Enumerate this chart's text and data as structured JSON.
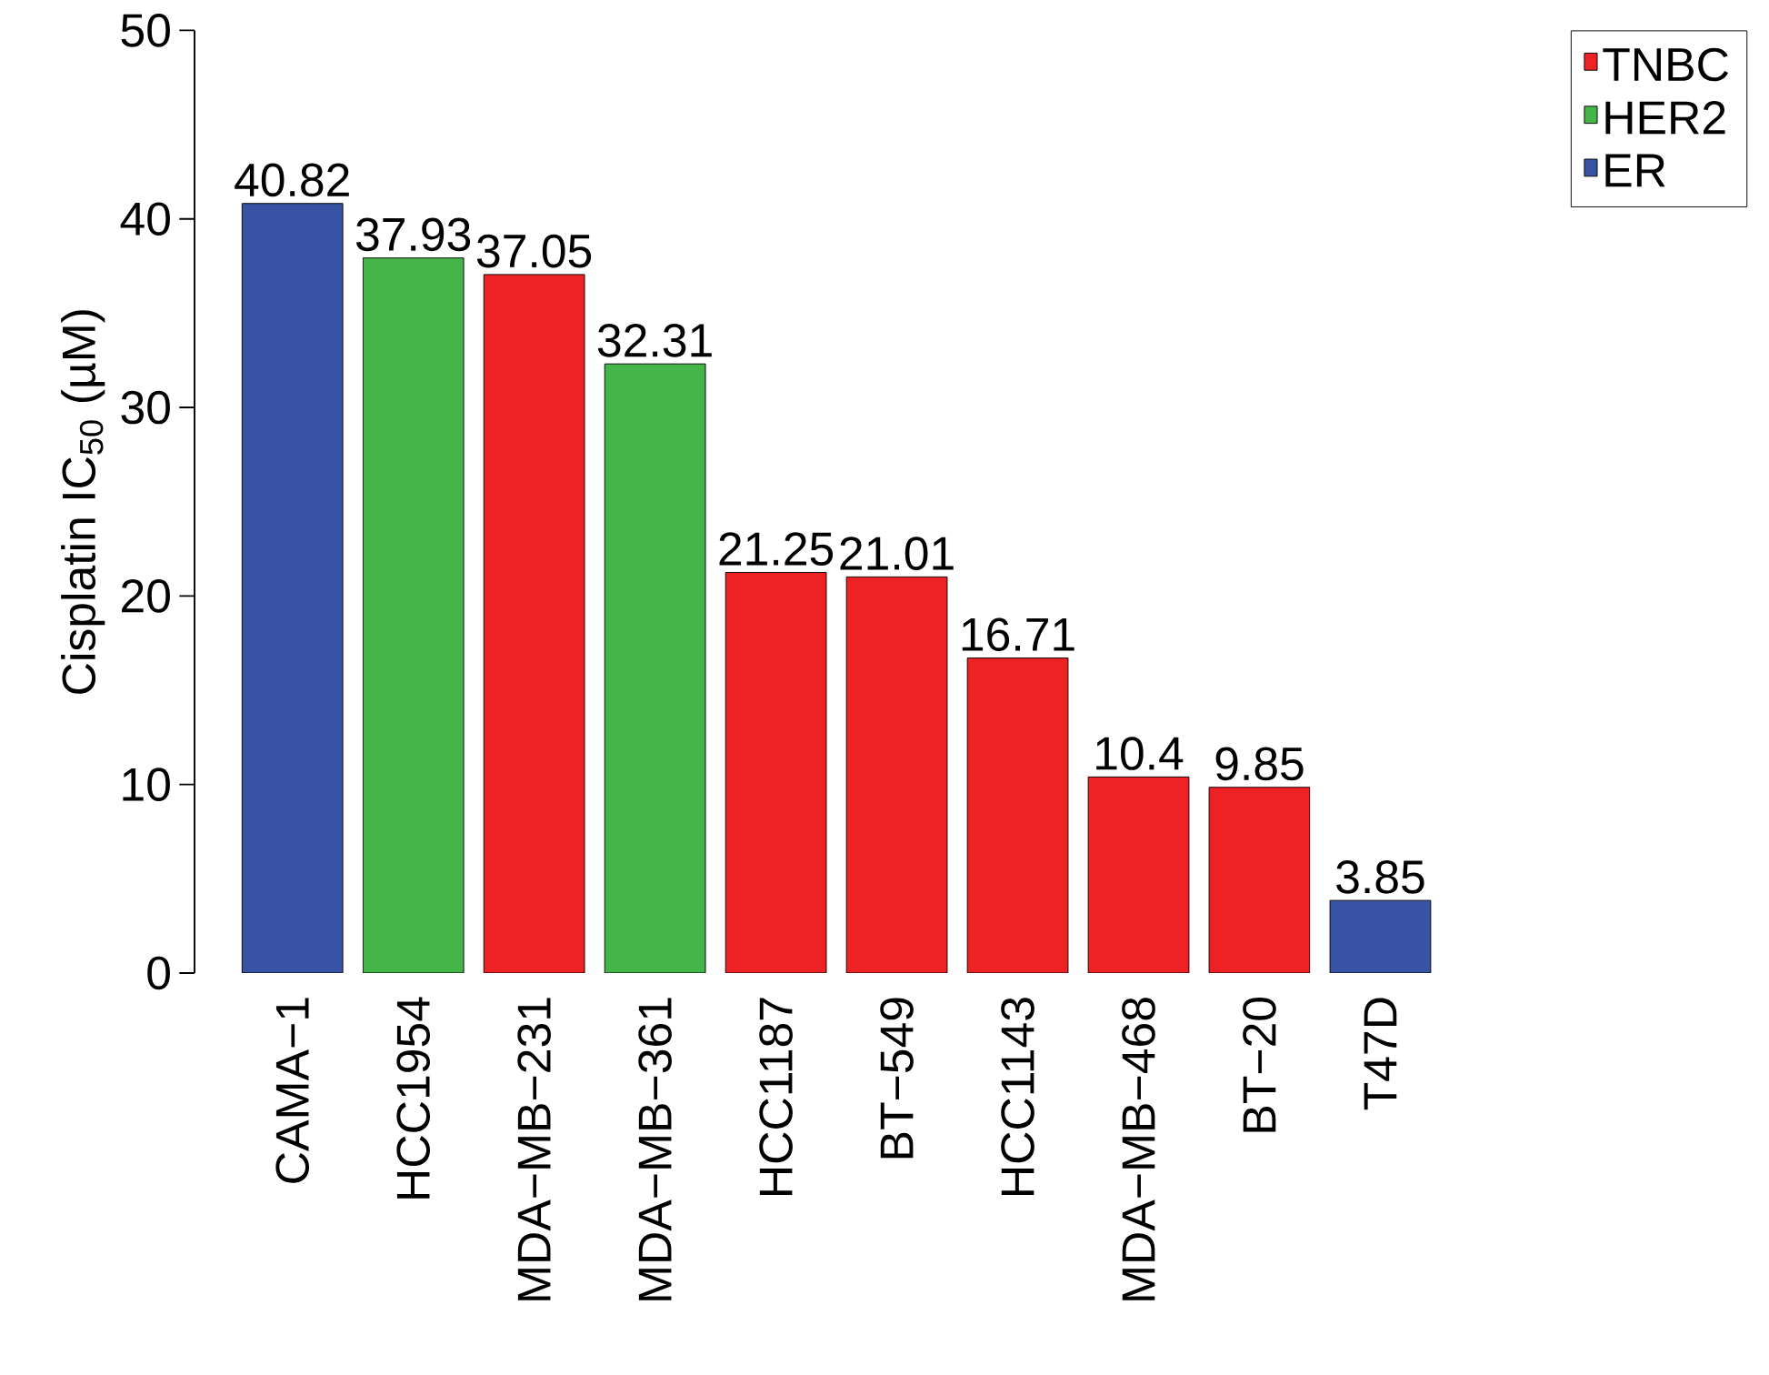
{
  "chart_data": {
    "type": "bar",
    "ylabel": "Cisplatin IC$_{50}$ (µM)",
    "categories": [
      "CAMA−1",
      "HCC1954",
      "MDA−MB−231",
      "MDA−MB−361",
      "HCC1187",
      "BT−549",
      "HCC1143",
      "MDA−MB−468",
      "BT−20",
      "T47D"
    ],
    "series": [
      {
        "name": "TNBC",
        "color": "#ee2225",
        "values": [
          null,
          null,
          37.05,
          null,
          21.25,
          21.01,
          16.71,
          10.4,
          9.85,
          null
        ]
      },
      {
        "name": "HER2",
        "color": "#44b549",
        "values": [
          null,
          37.93,
          null,
          32.31,
          null,
          null,
          null,
          null,
          null,
          null
        ]
      },
      {
        "name": "ER",
        "color": "#3953a4",
        "values": [
          40.82,
          null,
          null,
          null,
          null,
          null,
          null,
          null,
          null,
          3.85
        ]
      }
    ],
    "stacked": true,
    "ylim": [
      0,
      50
    ],
    "yticks": [
      0,
      10,
      20,
      30,
      40,
      50
    ],
    "data_labels": true,
    "legend": "top right"
  }
}
